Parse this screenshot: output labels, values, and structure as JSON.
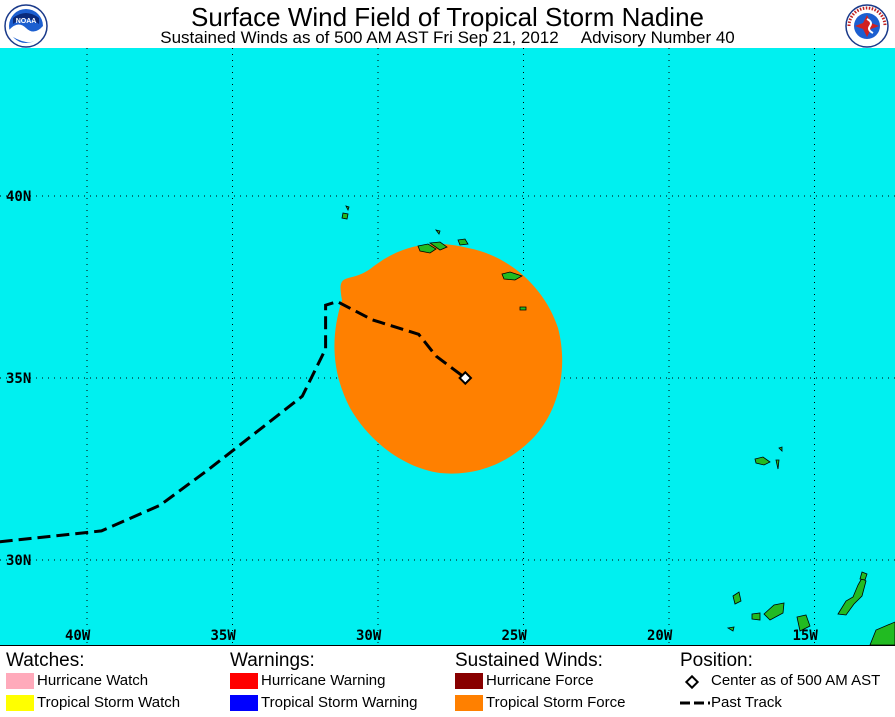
{
  "header": {
    "title": "Surface Wind Field of Tropical Storm Nadine",
    "subtitle_time": "Sustained Winds as of 500 AM AST Fri Sep 21, 2012",
    "subtitle_advisory": "Advisory Number 40",
    "logo_left": "NOAA",
    "logo_right": "NATIONAL WEATHER SERVICE"
  },
  "map": {
    "lat_labels": [
      "40N",
      "35N",
      "30N"
    ],
    "lon_labels": [
      "40W",
      "35W",
      "30W",
      "25W",
      "20W",
      "15W"
    ],
    "lat_values": [
      40,
      35,
      30
    ],
    "lon_values": [
      -40,
      -35,
      -30,
      -25,
      -20,
      -15
    ],
    "ocean_color": "#00f0f0",
    "land_color": "#22bb22",
    "wind_field_color": "#ff8000",
    "storm_center": {
      "lat": 35.0,
      "lon": -27.0
    },
    "past_track": [
      {
        "lat": 30.5,
        "lon": -43.0
      },
      {
        "lat": 30.8,
        "lon": -39.5
      },
      {
        "lat": 31.5,
        "lon": -37.5
      },
      {
        "lat": 32.5,
        "lon": -35.8
      },
      {
        "lat": 33.5,
        "lon": -34.2
      },
      {
        "lat": 34.5,
        "lon": -32.6
      },
      {
        "lat": 35.8,
        "lon": -31.8
      },
      {
        "lat": 37.0,
        "lon": -31.8
      },
      {
        "lat": 37.1,
        "lon": -31.4
      },
      {
        "lat": 36.6,
        "lon": -30.2
      },
      {
        "lat": 36.2,
        "lon": -28.6
      },
      {
        "lat": 35.6,
        "lon": -28.0
      },
      {
        "lat": 35.0,
        "lon": -27.0
      }
    ]
  },
  "legend": {
    "watches_title": "Watches:",
    "hurricane_watch": "Hurricane Watch",
    "tropical_storm_watch": "Tropical Storm Watch",
    "warnings_title": "Warnings:",
    "hurricane_warning": "Hurricane Warning",
    "tropical_storm_warning": "Tropical Storm Warning",
    "winds_title": "Sustained Winds:",
    "hurricane_force": "Hurricane Force",
    "tropical_storm_force": "Tropical Storm Force",
    "position_title": "Position:",
    "center_label": "Center as of 500 AM AST",
    "past_track_label": "Past Track",
    "colors": {
      "hurricane_watch": "#ffaabb",
      "tropical_storm_watch": "#ffff00",
      "hurricane_warning": "#ff0000",
      "tropical_storm_warning": "#0000ff",
      "hurricane_force": "#880000",
      "tropical_storm_force": "#ff8000"
    }
  }
}
